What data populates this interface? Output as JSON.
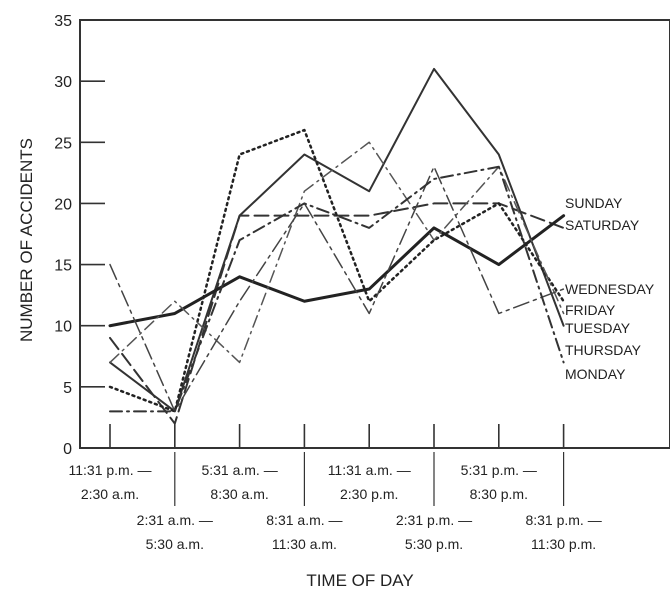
{
  "chart_data": {
    "type": "line",
    "title": "",
    "xlabel": "TIME OF DAY",
    "ylabel": "NUMBER OF ACCIDENTS",
    "ylim": [
      0,
      35
    ],
    "yticks": [
      "0",
      "5",
      "10",
      "15",
      "20",
      "25",
      "30",
      "35"
    ],
    "grid": false,
    "legend": "right-end-labels",
    "categories": [
      "11:31 p.m. — 2:30 a.m.",
      "2:31 a.m. — 5:30 a.m.",
      "5:31 a.m. — 8:30 a.m.",
      "8:31 a.m. — 11:30 a.m.",
      "11:31 a.m. — 2:30 p.m.",
      "2:31 p.m. — 5:30 p.m.",
      "5:31 p.m. — 8:30 p.m.",
      "8:31 p.m. — 11:30 p.m."
    ],
    "category_lines": [
      [
        "11:31 p.m. —",
        "2:30 a.m."
      ],
      [
        "2:31 a.m. —",
        "5:30 a.m."
      ],
      [
        "5:31 a.m. —",
        "8:30 a.m."
      ],
      [
        "8:31 a.m. —",
        "11:30 a.m."
      ],
      [
        "11:31 a.m. —",
        "2:30 p.m."
      ],
      [
        "2:31 p.m. —",
        "5:30 p.m."
      ],
      [
        "5:31 p.m. —",
        "8:30 p.m."
      ],
      [
        "8:31 p.m. —",
        "11:30 p.m."
      ]
    ],
    "series": [
      {
        "name": "SUNDAY",
        "values": [
          7,
          3,
          19,
          24,
          21,
          31,
          24,
          10
        ],
        "style": "solid",
        "width": 2,
        "color": "#333333"
      },
      {
        "name": "SATURDAY",
        "values": [
          9,
          2,
          19,
          19,
          19,
          20,
          20,
          18
        ],
        "style": "longdash",
        "width": 2,
        "color": "#333333"
      },
      {
        "name": "WEDNESDAY",
        "values": [
          10,
          11,
          14,
          12,
          13,
          18,
          15,
          19
        ],
        "style": "solid",
        "width": 3,
        "color": "#222222"
      },
      {
        "name": "FRIDAY",
        "values": [
          5,
          3,
          24,
          26,
          12,
          17,
          20,
          12
        ],
        "style": "dotted",
        "width": 2.5,
        "color": "#222222"
      },
      {
        "name": "TUESDAY",
        "values": [
          7,
          12,
          7,
          21,
          25,
          17,
          23,
          11
        ],
        "style": "dashdot",
        "width": 1.5,
        "color": "#555555"
      },
      {
        "name": "THURSDAY",
        "values": [
          15,
          3,
          12,
          20,
          11,
          23,
          11,
          13
        ],
        "style": "dashdotlong",
        "width": 1.5,
        "color": "#444444"
      },
      {
        "name": "MONDAY",
        "values": [
          3,
          3,
          17,
          20,
          18,
          22,
          23,
          7
        ],
        "style": "dashdot",
        "width": 2,
        "color": "#333333"
      }
    ]
  }
}
